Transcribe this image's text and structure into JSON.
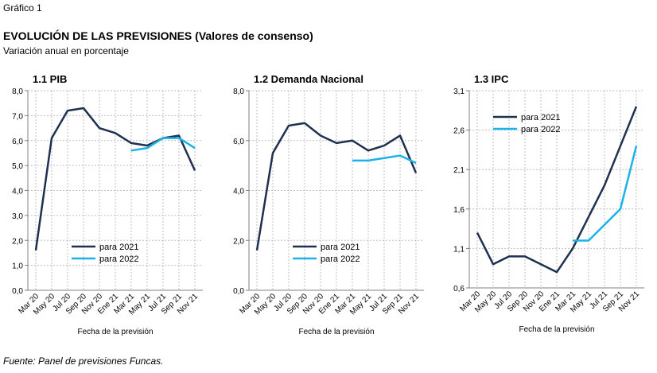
{
  "header": {
    "label": "Gráfico 1",
    "title": "EVOLUCIÓN DE LAS PREVISIONES (Valores de consenso)",
    "subtitle": "Variación anual en porcentaje"
  },
  "footer": {
    "source": "Fuente: Panel de previsiones Funcas."
  },
  "chart_data": [
    {
      "type": "line",
      "title": "1.1 PIB",
      "x_label": "Fecha de la previsión",
      "grid": true,
      "legend": "lower-center",
      "categories": [
        "Mar 20",
        "May 20",
        "Jul 20",
        "Sep 20",
        "Nov 20",
        "Ene 21",
        "Mar 21",
        "May 21",
        "Jul 21",
        "Sep 21",
        "Nov 21"
      ],
      "ylim": [
        0,
        8
      ],
      "yticks": [
        {
          "value": 0,
          "label": "0,0"
        },
        {
          "value": 1,
          "label": "1,0"
        },
        {
          "value": 2,
          "label": "2,0"
        },
        {
          "value": 3,
          "label": "3,0"
        },
        {
          "value": 4,
          "label": "4,0"
        },
        {
          "value": 5,
          "label": "5,0"
        },
        {
          "value": 6,
          "label": "6,0"
        },
        {
          "value": 7,
          "label": "7,0"
        },
        {
          "value": 8,
          "label": "8,0"
        }
      ],
      "series": [
        {
          "name": "para 2021",
          "color": "#1f3050",
          "values": [
            1.6,
            6.1,
            7.2,
            7.3,
            6.5,
            6.3,
            5.9,
            5.8,
            6.1,
            6.2,
            4.8
          ]
        },
        {
          "name": "para 2022",
          "color": "#1ab2e8",
          "values": [
            null,
            null,
            null,
            null,
            null,
            null,
            5.6,
            5.7,
            6.1,
            6.1,
            5.7
          ]
        }
      ]
    },
    {
      "type": "line",
      "title": "1.2 Demanda Nacional",
      "x_label": "Fecha de la previsión",
      "grid": true,
      "legend": "lower-center",
      "categories": [
        "Mar 20",
        "May 20",
        "Jul 20",
        "Sep 20",
        "Nov 20",
        "Ene 21",
        "Mar 21",
        "May 21",
        "Jul 21",
        "Sep 21",
        "Nov 21"
      ],
      "ylim": [
        0,
        8
      ],
      "yticks": [
        {
          "value": 0,
          "label": "0,0"
        },
        {
          "value": 2,
          "label": "2,0"
        },
        {
          "value": 4,
          "label": "4,0"
        },
        {
          "value": 6,
          "label": "6,0"
        },
        {
          "value": 8,
          "label": "8,0"
        }
      ],
      "series": [
        {
          "name": "para 2021",
          "color": "#1f3050",
          "values": [
            1.6,
            5.5,
            6.6,
            6.7,
            6.2,
            5.9,
            6.0,
            5.6,
            5.8,
            6.2,
            4.7
          ]
        },
        {
          "name": "para 2022",
          "color": "#1ab2e8",
          "values": [
            null,
            null,
            null,
            null,
            null,
            null,
            5.2,
            5.2,
            5.3,
            5.4,
            5.1
          ]
        }
      ]
    },
    {
      "type": "line",
      "title": "1.3 IPC",
      "x_label": "Fecha de la previsión",
      "grid": true,
      "legend": "upper-left",
      "categories": [
        "Mar 20",
        "May 20",
        "Jul 20",
        "Sep 20",
        "Nov 20",
        "Ene 21",
        "Mar 21",
        "May 21",
        "Jul 21",
        "Sep 21",
        "Nov 21"
      ],
      "ylim": [
        0.6,
        3.1
      ],
      "yticks": [
        {
          "value": 0.6,
          "label": "0,6"
        },
        {
          "value": 1.1,
          "label": "1,1"
        },
        {
          "value": 1.6,
          "label": "1,6"
        },
        {
          "value": 2.1,
          "label": "2,1"
        },
        {
          "value": 2.6,
          "label": "2,6"
        },
        {
          "value": 3.1,
          "label": "3,1"
        }
      ],
      "series": [
        {
          "name": "para 2021",
          "color": "#1f3050",
          "values": [
            1.3,
            0.9,
            1.0,
            1.0,
            0.9,
            0.8,
            1.1,
            1.5,
            1.9,
            2.4,
            2.9
          ]
        },
        {
          "name": "para 2022",
          "color": "#1ab2e8",
          "values": [
            null,
            null,
            null,
            null,
            null,
            null,
            1.2,
            1.2,
            1.4,
            1.6,
            2.4
          ]
        }
      ]
    }
  ]
}
